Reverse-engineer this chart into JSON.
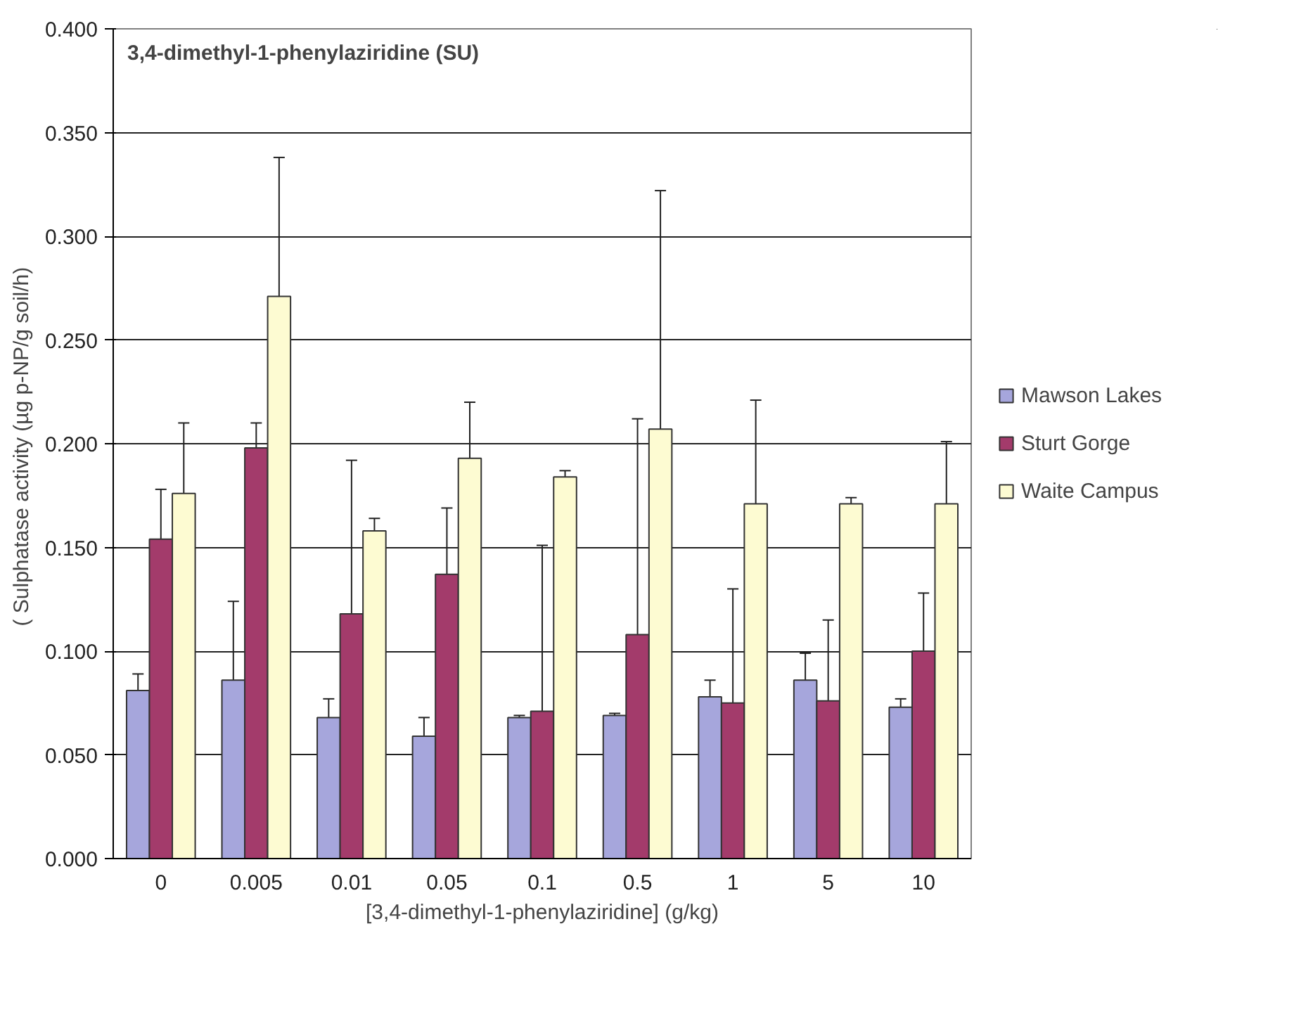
{
  "chart_data": {
    "type": "bar",
    "title": "3,4-dimethyl-1-phenylaziridine (SU)",
    "xlabel": "[3,4-dimethyl-1-phenylaziridine] (g/kg)",
    "ylabel": "(  Sulphatase activity (µg p-NP/g soil/h)",
    "categories": [
      "0",
      "0.005",
      "0.01",
      "0.05",
      "0.1",
      "0.5",
      "1",
      "5",
      "10"
    ],
    "series": [
      {
        "name": "Mawson Lakes",
        "color": "#a6a6dc",
        "values": [
          0.081,
          0.086,
          0.068,
          0.059,
          0.068,
          0.069,
          0.078,
          0.086,
          0.073
        ],
        "errors": [
          0.008,
          0.038,
          0.009,
          0.009,
          0.001,
          0.001,
          0.008,
          0.013,
          0.004
        ]
      },
      {
        "name": "Sturt Gorge",
        "color": "#a33b6b",
        "values": [
          0.154,
          0.198,
          0.118,
          0.137,
          0.071,
          0.108,
          0.075,
          0.076,
          0.1
        ],
        "errors": [
          0.024,
          0.012,
          0.074,
          0.032,
          0.08,
          0.104,
          0.055,
          0.039,
          0.028
        ]
      },
      {
        "name": "Waite Campus",
        "color": "#fdfbd2",
        "values": [
          0.176,
          0.271,
          0.158,
          0.193,
          0.184,
          0.207,
          0.171,
          0.171,
          0.171
        ],
        "errors": [
          0.034,
          0.067,
          0.006,
          0.027,
          0.003,
          0.115,
          0.05,
          0.003,
          0.03
        ]
      }
    ],
    "ylim": [
      0,
      0.4
    ],
    "yticks": [
      {
        "value": 0,
        "label": "0.000"
      },
      {
        "value": 0.05,
        "label": "0.050"
      },
      {
        "value": 0.1,
        "label": "0.100"
      },
      {
        "value": 0.15,
        "label": "0.150"
      },
      {
        "value": 0.2,
        "label": "0.200"
      },
      {
        "value": 0.25,
        "label": "0.250"
      },
      {
        "value": 0.3,
        "label": "0.300"
      },
      {
        "value": 0.35,
        "label": "0.350"
      },
      {
        "value": 0.4,
        "label": "0.400"
      }
    ],
    "grid": "y",
    "legend": "right"
  }
}
